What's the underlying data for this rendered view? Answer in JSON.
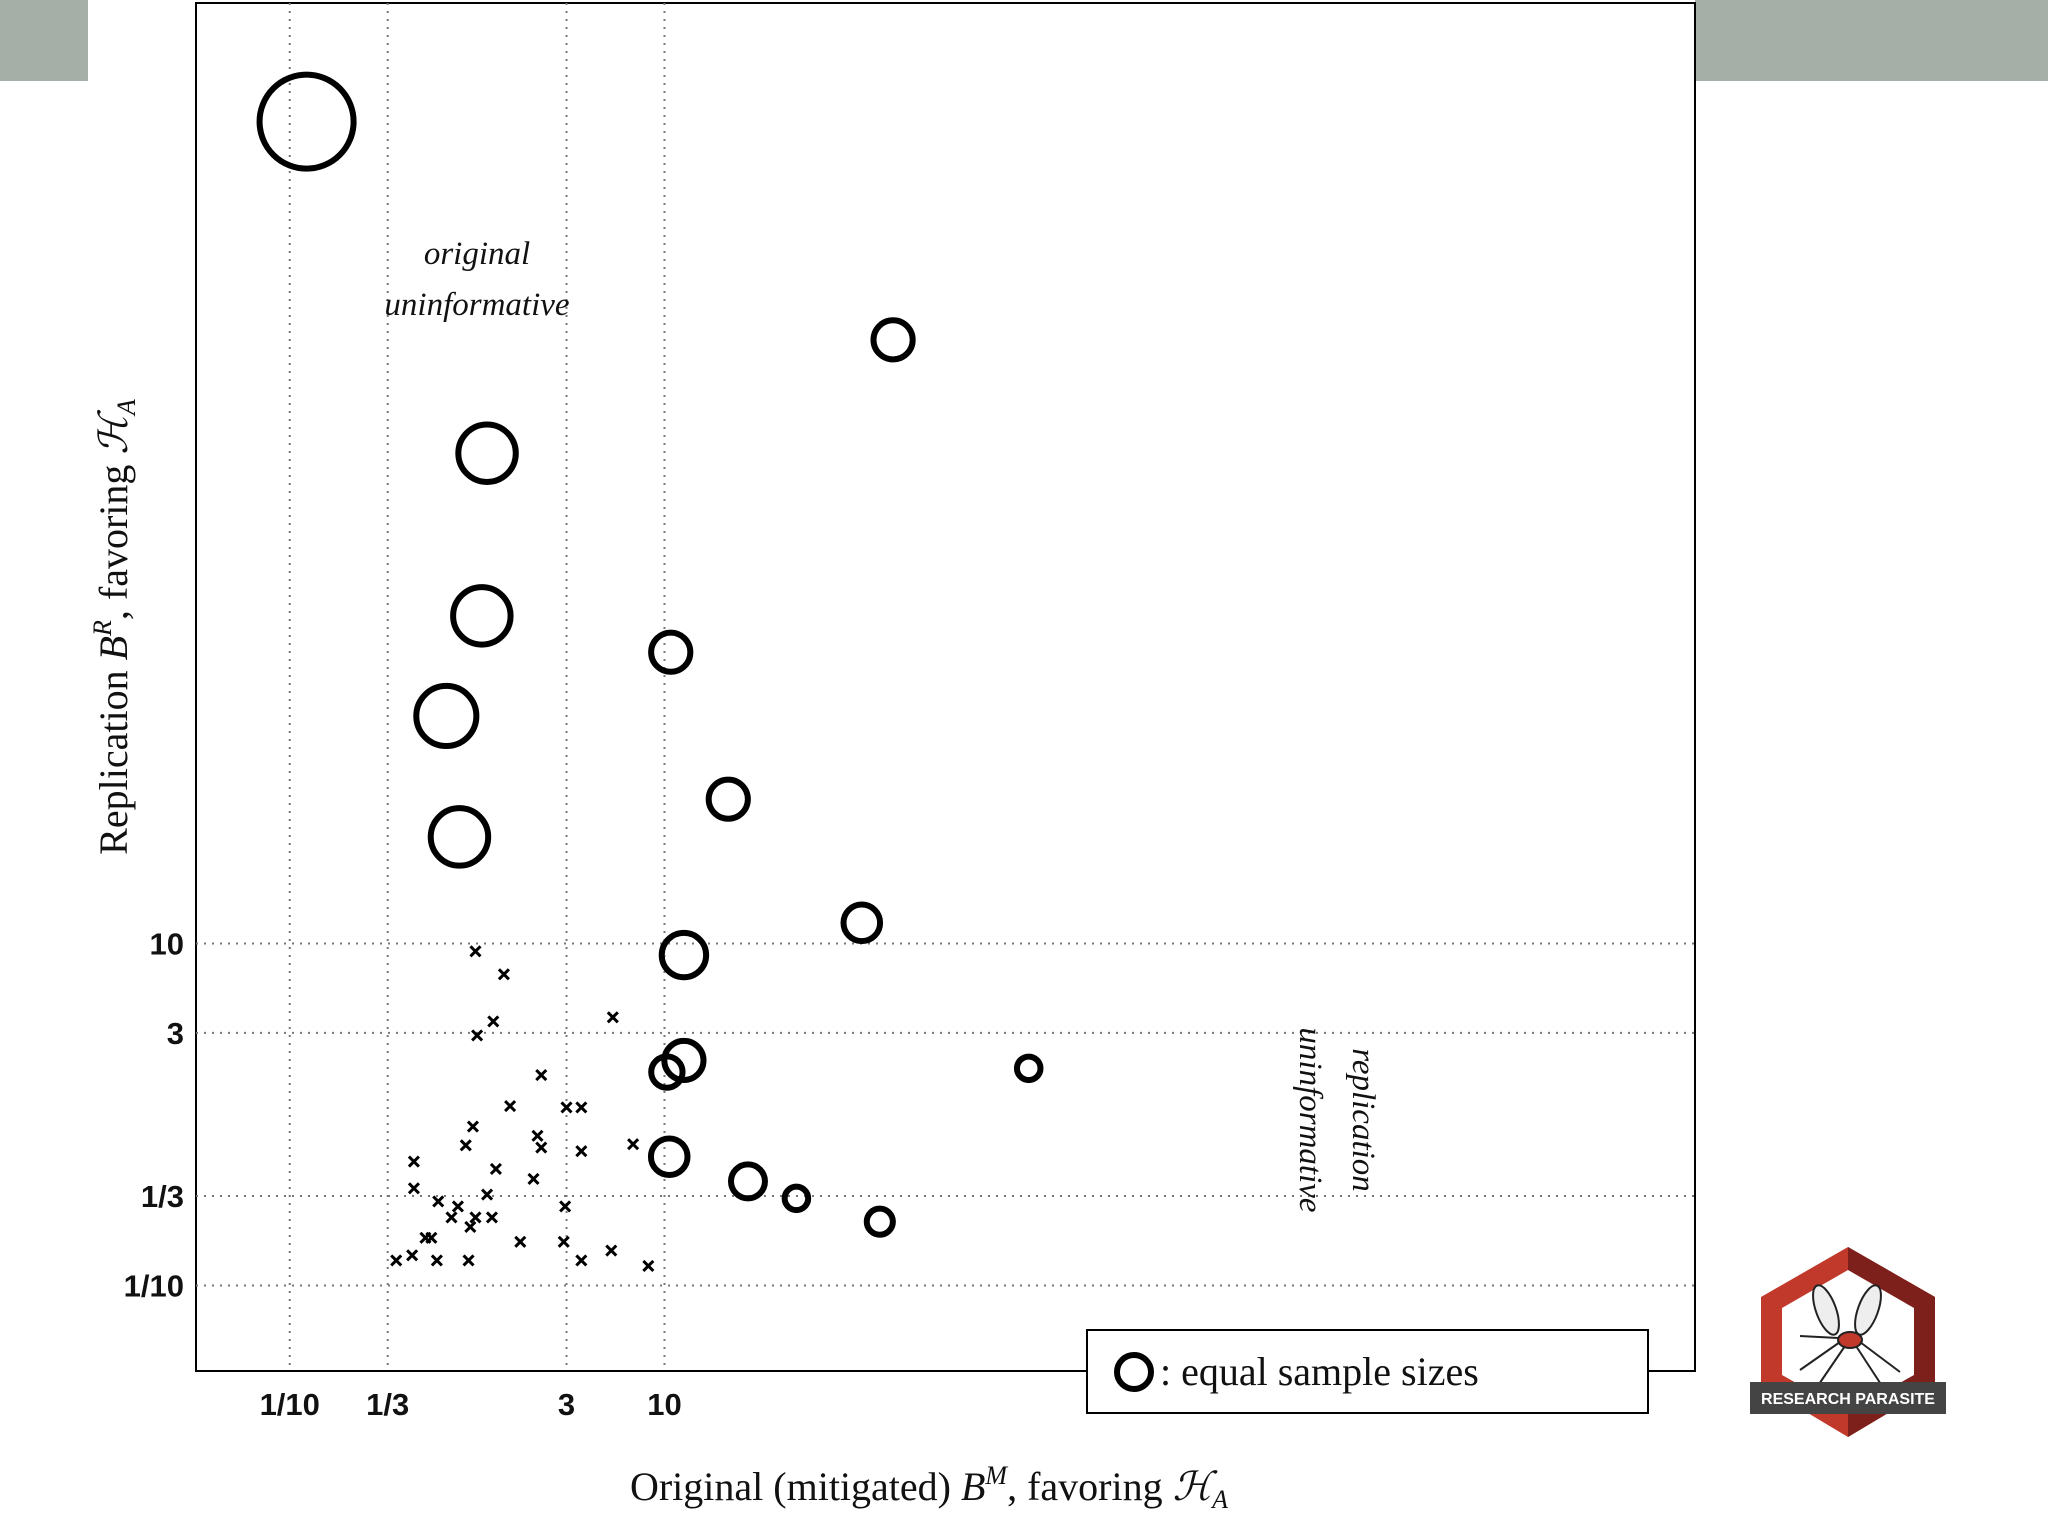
{
  "chart_data": {
    "type": "scatter",
    "log_scale": true,
    "grid": true,
    "legend": "lower right",
    "xlim": [
      0.0316,
      3162000
    ],
    "ylim": [
      0.0316,
      3162000
    ],
    "xticks": [
      {
        "value": 0.1,
        "label": "1/10"
      },
      {
        "value": 0.3333,
        "label": "1/3"
      },
      3,
      10
    ],
    "yticks": [
      {
        "value": 0.1,
        "label": "1/10"
      },
      {
        "value": 0.3333,
        "label": "1/3"
      },
      3,
      10
    ],
    "x_label": {
      "text": "Original (mitigated) ",
      "sym": "B",
      "sup": "M",
      "rest": ", favoring ",
      "sym2": "ℋ",
      "sub": "A"
    },
    "y_label": {
      "text": "Replication ",
      "sym": "B",
      "sup": "R",
      "rest": ", favoring ",
      "sym2": "ℋ",
      "sub": "A"
    },
    "annotations": [
      {
        "lines": [
          "original",
          "uninformative"
        ]
      },
      {
        "lines": [
          "replication",
          "uninformative"
        ]
      }
    ],
    "series": [
      {
        "name": ": equal sample sizes",
        "marker": "circle",
        "color": "#000000",
        "x": [
          0.123,
          166,
          1.13,
          1.06,
          10.8,
          0.685,
          21.9,
          0.805,
          113,
          12.7,
          879,
          12.7,
          10.3,
          10.6,
          27.9,
          50.6,
          141
        ],
        "values": [
          640000,
          33900,
          7360,
          824,
          505,
          214,
          69.8,
          42,
          13.2,
          8.55,
          1.86,
          2.07,
          1.77,
          0.566,
          0.406,
          0.323,
          0.236
        ],
        "sizes": [
          36,
          15,
          22,
          22,
          15,
          23,
          15,
          22,
          14,
          17,
          9,
          15,
          12,
          14,
          13,
          9,
          10
        ]
      },
      {
        "marker": "x",
        "color": "#000000",
        "x": [
          0.98,
          1.39,
          1.22,
          1.0,
          5.3,
          2.2,
          3.0,
          3.6,
          1.5,
          0.95,
          0.87,
          2.1,
          2.2,
          3.6,
          6.8,
          0.46,
          1.26,
          2.0,
          0.46,
          1.13,
          0.62,
          0.79,
          2.95,
          0.73,
          0.98,
          1.2,
          0.92,
          0.53,
          0.57,
          1.7,
          2.9,
          5.2,
          0.37,
          0.45,
          0.61,
          0.9,
          3.6,
          8.2
        ],
        "values": [
          9.0,
          6.6,
          3.5,
          2.9,
          3.7,
          1.7,
          1.1,
          1.1,
          1.12,
          0.85,
          0.66,
          0.75,
          0.64,
          0.61,
          0.67,
          0.53,
          0.48,
          0.42,
          0.37,
          0.34,
          0.31,
          0.29,
          0.29,
          0.25,
          0.25,
          0.25,
          0.22,
          0.19,
          0.19,
          0.18,
          0.18,
          0.16,
          0.14,
          0.15,
          0.14,
          0.14,
          0.14,
          0.13
        ]
      }
    ]
  },
  "logo": "RESEARCH PARASITE"
}
